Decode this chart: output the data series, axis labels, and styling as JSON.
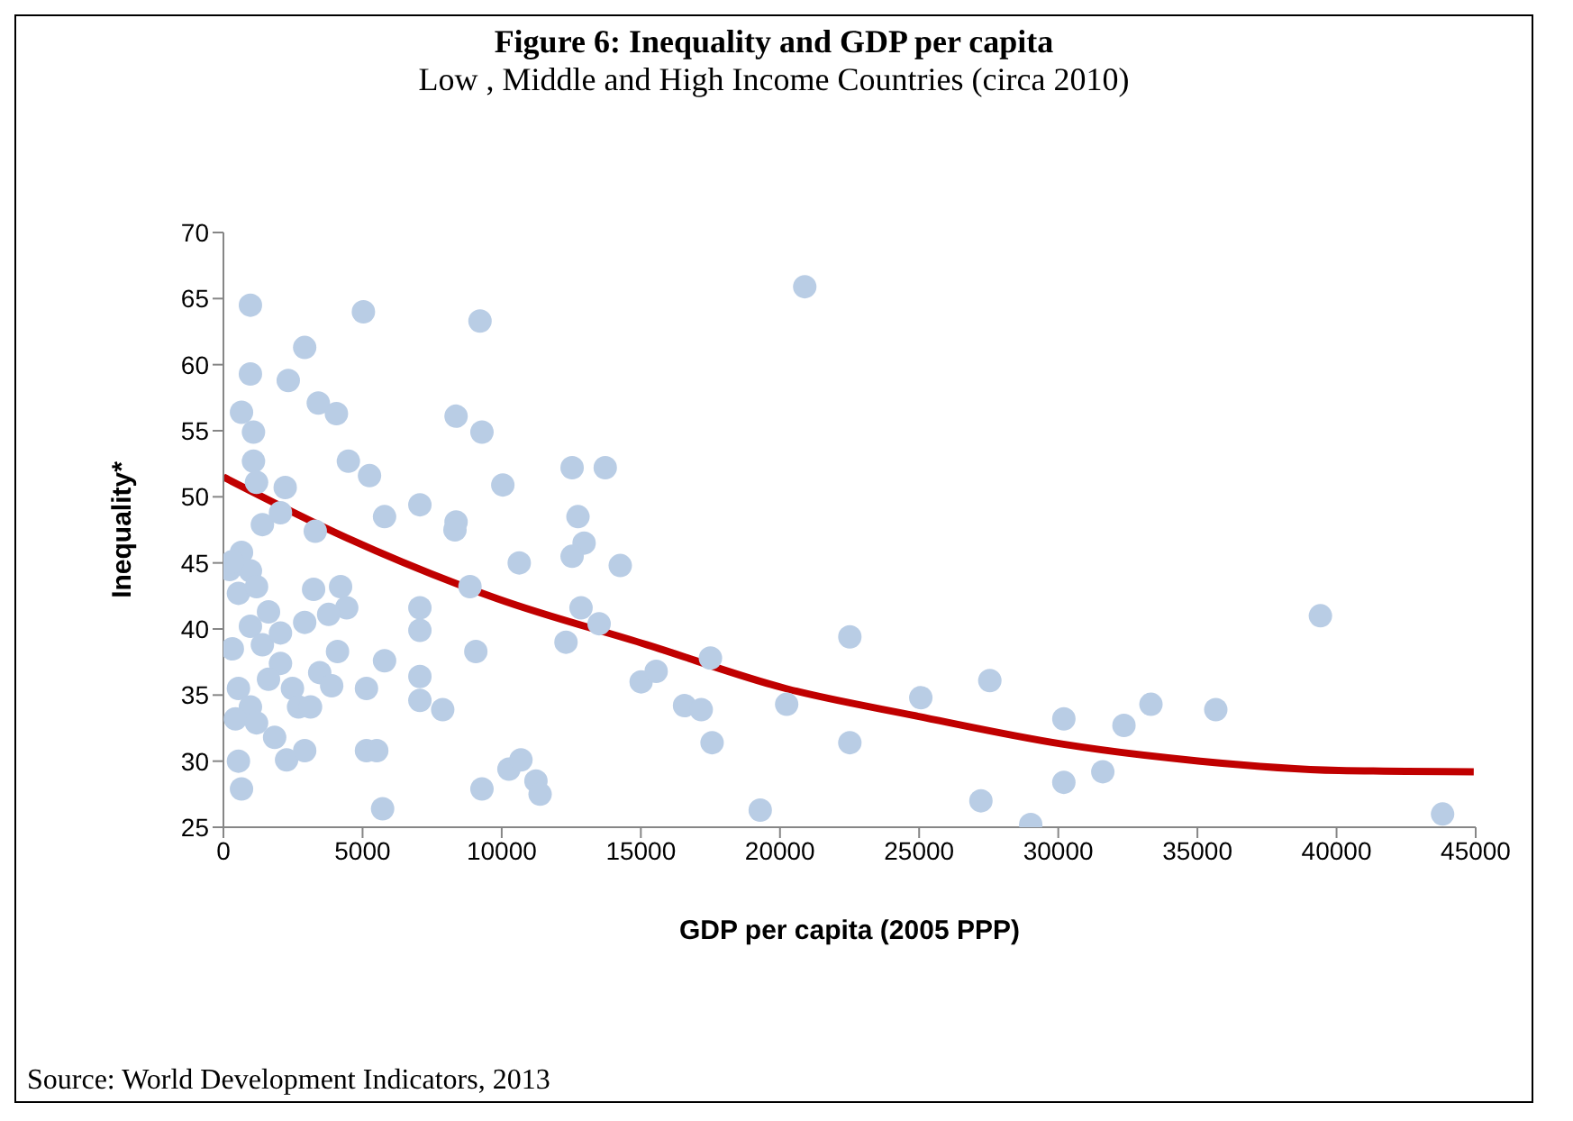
{
  "chart_data": {
    "type": "scatter",
    "title": "Figure 6: Inequality and GDP per capita",
    "subtitle": "Low , Middle and High Income Countries (circa 2010)",
    "xlabel": "GDP per capita (2005 PPP)",
    "ylabel": "Inequality*",
    "annotations": [
      "Source: World Development Indicators, 2013"
    ],
    "xlim": [
      0,
      45000
    ],
    "xticks": [
      0,
      5000,
      10000,
      15000,
      20000,
      25000,
      30000,
      35000,
      40000,
      45000
    ],
    "ylim": [
      25,
      70
    ],
    "yticks": [
      25,
      30,
      35,
      40,
      45,
      50,
      55,
      60,
      65,
      70
    ],
    "legend": false,
    "series": [
      {
        "marker": "circle",
        "color": "#b9cde5",
        "x": [
          970,
          5030,
          9220,
          2920,
          970,
          2330,
          650,
          3410,
          4060,
          8360,
          9290,
          1080,
          1080,
          4490,
          5250,
          1190,
          2220,
          10040,
          12530,
          13720,
          12740,
          12960,
          12530,
          14260,
          5790,
          7060,
          8360,
          8320,
          10630,
          8860,
          1400,
          2050,
          3300,
          650,
          970,
          220,
          540,
          1190,
          3240,
          4210,
          4430,
          3780,
          1620,
          970,
          320,
          1400,
          2050,
          2920,
          4100,
          2050,
          1620,
          2480,
          3460,
          3890,
          5790,
          5140,
          7060,
          7060,
          9070,
          7060,
          7060,
          7880,
          12850,
          13500,
          12310,
          15010,
          540,
          970,
          430,
          1190,
          1840,
          2270,
          2920,
          2700,
          3130,
          540,
          650,
          5140,
          5510,
          5720,
          9290,
          10260,
          10690,
          11230,
          11380,
          320,
          15550,
          17500,
          16570,
          17170,
          17560,
          19290,
          20240,
          20890,
          22510,
          22510,
          25060,
          27220,
          27540,
          29010,
          30200,
          30200,
          31600,
          32360,
          33330,
          35660,
          39420,
          43810
        ],
        "values": [
          64.5,
          64.0,
          63.3,
          61.3,
          59.3,
          58.8,
          56.4,
          57.1,
          56.3,
          56.1,
          54.9,
          54.9,
          52.7,
          52.7,
          51.6,
          51.1,
          50.7,
          50.9,
          52.2,
          52.2,
          48.5,
          46.5,
          45.5,
          44.8,
          48.5,
          49.4,
          48.1,
          47.5,
          45.0,
          43.2,
          47.9,
          48.8,
          47.4,
          45.8,
          44.4,
          44.5,
          42.7,
          43.2,
          43.0,
          43.2,
          41.6,
          41.1,
          41.3,
          40.2,
          38.5,
          38.8,
          39.7,
          40.5,
          38.3,
          37.4,
          36.2,
          35.5,
          36.7,
          35.7,
          37.6,
          35.5,
          41.6,
          39.9,
          38.3,
          36.4,
          34.6,
          33.9,
          41.6,
          40.4,
          39.0,
          36.0,
          35.5,
          34.1,
          33.2,
          32.9,
          31.8,
          30.1,
          30.8,
          34.1,
          34.1,
          30.0,
          27.9,
          30.8,
          30.8,
          26.4,
          27.9,
          29.4,
          30.1,
          28.5,
          27.5,
          45.1,
          36.8,
          37.8,
          34.2,
          33.9,
          31.4,
          26.3,
          34.3,
          65.9,
          39.4,
          31.4,
          34.8,
          27.0,
          36.1,
          25.2,
          33.2,
          28.4,
          29.2,
          32.7,
          34.3,
          33.9,
          41.0,
          26.0
        ]
      },
      {
        "type": "line",
        "marker": "none",
        "line_style": "solid",
        "color": "#c00000",
        "x": [
          0,
          4430,
          9830,
          15230,
          20200,
          24950,
          30130,
          35100,
          40070,
          44930
        ],
        "values": [
          51.5,
          46.9,
          42.3,
          38.8,
          35.5,
          33.4,
          31.3,
          30.0,
          29.3,
          29.2
        ]
      }
    ]
  }
}
